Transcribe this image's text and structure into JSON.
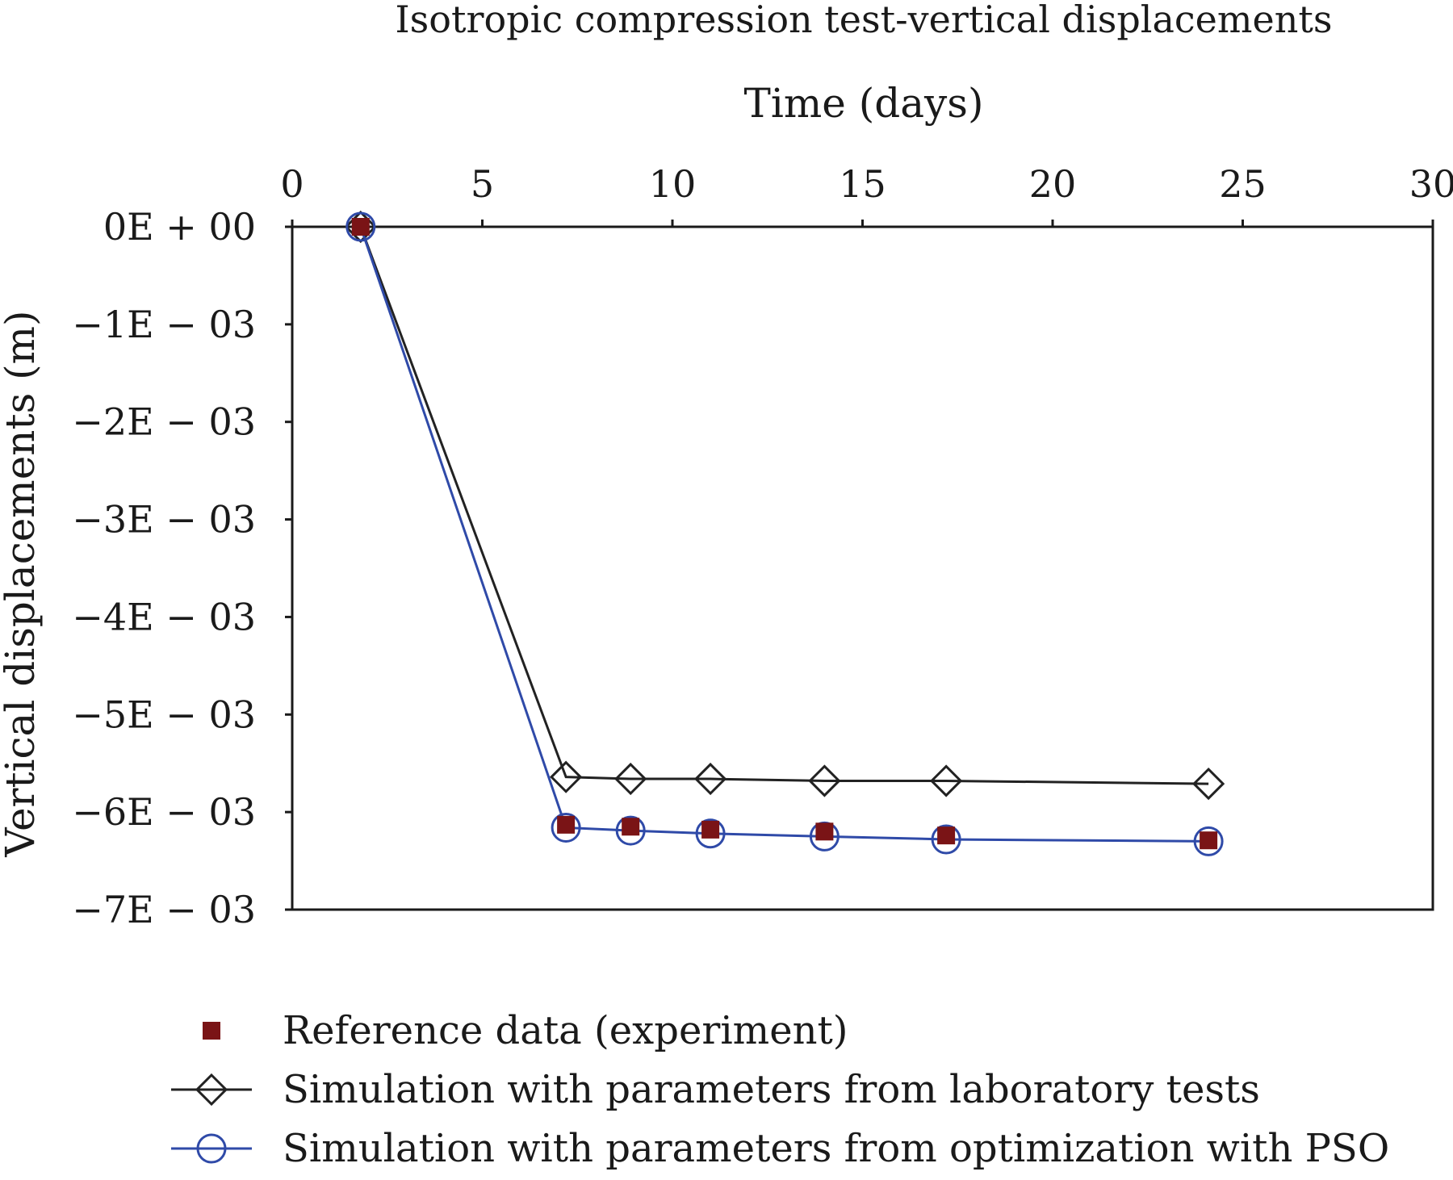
{
  "chart_data": {
    "type": "line",
    "title": "Isotropic compression test-vertical displacements",
    "xlabel": "Time (days)",
    "ylabel": "Vertical displacements (m)",
    "x_axis_position": "top",
    "xlim": [
      0,
      30
    ],
    "ylim": [
      -0.007,
      0
    ],
    "x_ticks": [
      0,
      5,
      10,
      15,
      20,
      25,
      30
    ],
    "x_tick_labels": [
      "0",
      "5",
      "10",
      "15",
      "20",
      "25",
      "30"
    ],
    "y_ticks": [
      0,
      -0.001,
      -0.002,
      -0.003,
      -0.004,
      -0.005,
      -0.006,
      -0.007
    ],
    "y_tick_labels": [
      "0E + 00",
      "−1E − 03",
      "−2E − 03",
      "−3E − 03",
      "−4E − 03",
      "−5E − 03",
      "−6E − 03",
      "−7E − 03"
    ],
    "grid": false,
    "legend_position": "bottom",
    "series": [
      {
        "name": "Reference data (experiment)",
        "marker": "square",
        "line": false,
        "color": "#7a1416",
        "x": [
          1.8,
          7.2,
          8.9,
          11.0,
          14.0,
          17.2,
          24.1
        ],
        "y": [
          0,
          -0.00613,
          -0.00615,
          -0.00618,
          -0.0062,
          -0.00624,
          -0.00629
        ]
      },
      {
        "name": "Simulation with parameters from laboratory tests",
        "marker": "diamond",
        "line": true,
        "color": "#222222",
        "x": [
          1.8,
          7.2,
          8.9,
          11.0,
          14.0,
          17.2,
          24.1
        ],
        "y": [
          0,
          -0.00564,
          -0.00566,
          -0.00566,
          -0.00568,
          -0.00568,
          -0.00571
        ]
      },
      {
        "name": "Simulation with parameters from optimization with PSO",
        "marker": "circle",
        "line": true,
        "color": "#2f4aa8",
        "x": [
          1.8,
          7.2,
          8.9,
          11.0,
          14.0,
          17.2,
          24.1
        ],
        "y": [
          0,
          -0.00616,
          -0.00619,
          -0.00622,
          -0.00625,
          -0.00628,
          -0.0063
        ]
      }
    ]
  }
}
